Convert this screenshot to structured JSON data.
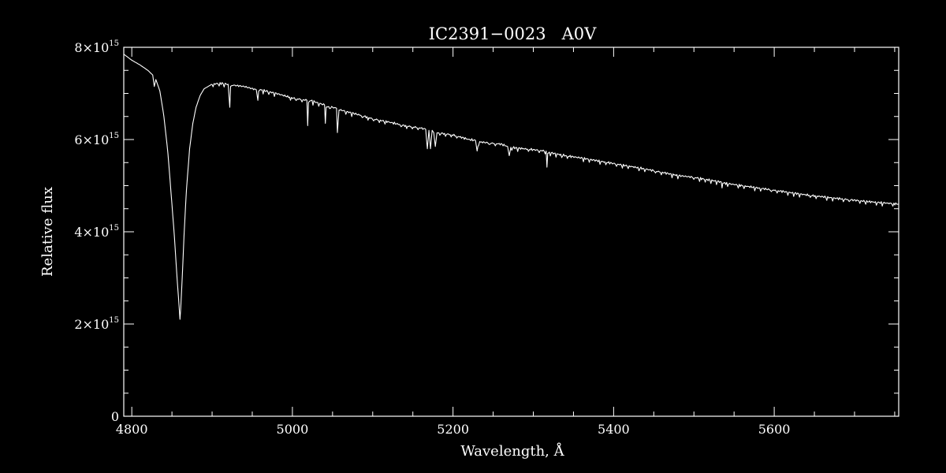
{
  "chart_data": {
    "type": "line",
    "title": "IC2391−0023   A0V",
    "xlabel": "Wavelength, Å",
    "ylabel": "Relative flux",
    "xlim": [
      4790,
      5755
    ],
    "ylim": [
      0,
      8000000000000000.0
    ],
    "x_major_ticks": [
      4800,
      5000,
      5200,
      5400,
      5600
    ],
    "x_tick_labels": [
      "4800",
      "5000",
      "5200",
      "5400",
      "5600"
    ],
    "y_major_ticks": [
      0,
      2000000000000000.0,
      4000000000000000.0,
      6000000000000000.0,
      8000000000000000.0
    ],
    "y_tick_labels": [
      {
        "mantissa": "0",
        "exponent": ""
      },
      {
        "mantissa": "2×10",
        "exponent": "15"
      },
      {
        "mantissa": "4×10",
        "exponent": "15"
      },
      {
        "mantissa": "6×10",
        "exponent": "15"
      },
      {
        "mantissa": "8×10",
        "exponent": "15"
      }
    ],
    "colors": {
      "background": "#000000",
      "line": "#ffffff",
      "axes": "#ffffff"
    },
    "grid": false,
    "series": [
      {
        "x": [
          4790,
          4800,
          4810,
          4820,
          4826,
          4828,
          4830,
          4835,
          4840,
          4845,
          4850,
          4853,
          4856,
          4858,
          4859,
          4860,
          4861,
          4862,
          4863,
          4865,
          4868,
          4872,
          4876,
          4880,
          4885,
          4890,
          4895,
          4900,
          4910,
          4920,
          4922,
          4923,
          4925,
          4940,
          4955,
          4957,
          4958,
          4960,
          4980,
          5000,
          5018,
          5019,
          5020,
          5022,
          5040,
          5041,
          5042,
          5044,
          5055,
          5056,
          5058,
          5080,
          5100,
          5120,
          5140,
          5160,
          5166,
          5168,
          5170,
          5172,
          5174,
          5176,
          5178,
          5180,
          5200,
          5220,
          5228,
          5230,
          5232,
          5260,
          5268,
          5270,
          5272,
          5300,
          5316,
          5317,
          5318,
          5320,
          5340,
          5360,
          5400,
          5440,
          5480,
          5500,
          5520,
          5534,
          5535,
          5536,
          5560,
          5600,
          5640,
          5680,
          5720,
          5755
        ],
        "y": [
          7850000000000000.0,
          7720000000000000.0,
          7620000000000000.0,
          7500000000000000.0,
          7400000000000000.0,
          7150000000000000.0,
          7300000000000000.0,
          7050000000000000.0,
          6500000000000000.0,
          5700000000000000.0,
          4600000000000000.0,
          3900000000000000.0,
          3100000000000000.0,
          2600000000000000.0,
          2350000000000000.0,
          2100000000000000.0,
          2350000000000000.0,
          2700000000000000.0,
          3100000000000000.0,
          3900000000000000.0,
          4900000000000000.0,
          5800000000000000.0,
          6350000000000000.0,
          6700000000000000.0,
          6950000000000000.0,
          7100000000000000.0,
          7150000000000000.0,
          7200000000000000.0,
          7220000000000000.0,
          7200000000000000.0,
          6700000000000000.0,
          7150000000000000.0,
          7180000000000000.0,
          7150000000000000.0,
          7080000000000000.0,
          6850000000000000.0,
          7050000000000000.0,
          7080000000000000.0,
          7000000000000000.0,
          6900000000000000.0,
          6850000000000000.0,
          6300000000000000.0,
          6800000000000000.0,
          6850000000000000.0,
          6750000000000000.0,
          6350000000000000.0,
          6700000000000000.0,
          6720000000000000.0,
          6680000000000000.0,
          6150000000000000.0,
          6650000000000000.0,
          6550000000000000.0,
          6450000000000000.0,
          6380000000000000.0,
          6300000000000000.0,
          6250000000000000.0,
          6220000000000000.0,
          5800000000000000.0,
          6200000000000000.0,
          5800000000000000.0,
          6200000000000000.0,
          6150000000000000.0,
          5850000000000000.0,
          6150000000000000.0,
          6100000000000000.0,
          6000000000000000.0,
          5980000000000000.0,
          5750000000000000.0,
          5950000000000000.0,
          5900000000000000.0,
          5850000000000000.0,
          5650000000000000.0,
          5830000000000000.0,
          5780000000000000.0,
          5750000000000000.0,
          5400000000000000.0,
          5700000000000000.0,
          5720000000000000.0,
          5650000000000000.0,
          5600000000000000.0,
          5480000000000000.0,
          5360000000000000.0,
          5220000000000000.0,
          5180000000000000.0,
          5120000000000000.0,
          5080000000000000.0,
          4950000000000000.0,
          5060000000000000.0,
          5000000000000000.0,
          4900000000000000.0,
          4800000000000000.0,
          4720000000000000.0,
          4650000000000000.0,
          4600000000000000.0
        ]
      }
    ]
  }
}
